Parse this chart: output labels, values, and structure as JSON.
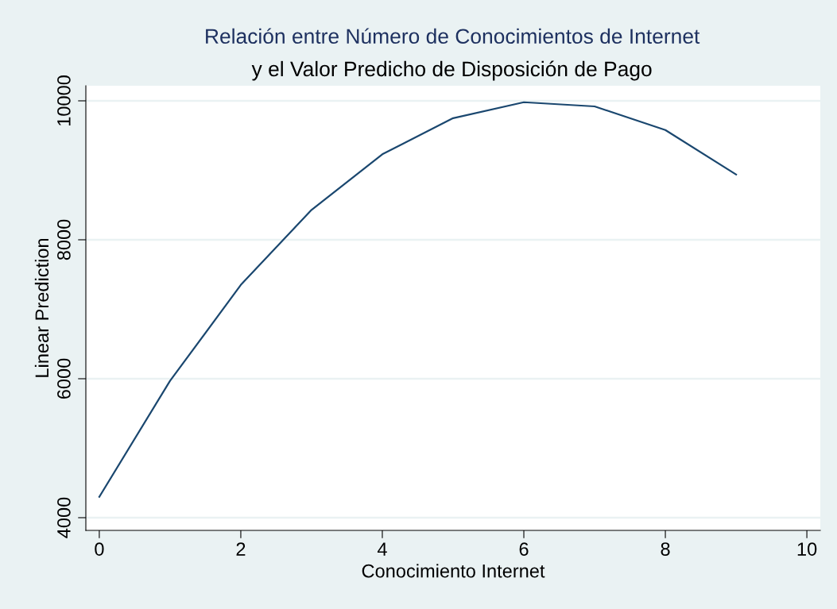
{
  "chart_data": {
    "type": "line",
    "title": "Relación entre Número de Conocimientos de Internet",
    "subtitle": "y el Valor Predicho de Disposición de Pago",
    "xlabel": "Conocimiento Internet",
    "ylabel": "Linear Prediction",
    "x": [
      0,
      1,
      2,
      3,
      4,
      5,
      6,
      7,
      8,
      9
    ],
    "series": [
      {
        "color": "#1a476f",
        "values": [
          4300,
          5970,
          7350,
          8430,
          9230,
          9750,
          9980,
          9920,
          9580,
          8940
        ]
      }
    ],
    "xlim": [
      -0.19,
      10.19
    ],
    "ylim": [
      3817,
      10217
    ],
    "xticks": [
      0,
      2,
      4,
      6,
      8,
      10
    ],
    "yticks": [
      4000,
      6000,
      8000,
      10000
    ],
    "grid": "y",
    "legend": false,
    "marker": "none",
    "line_style": "solid"
  }
}
